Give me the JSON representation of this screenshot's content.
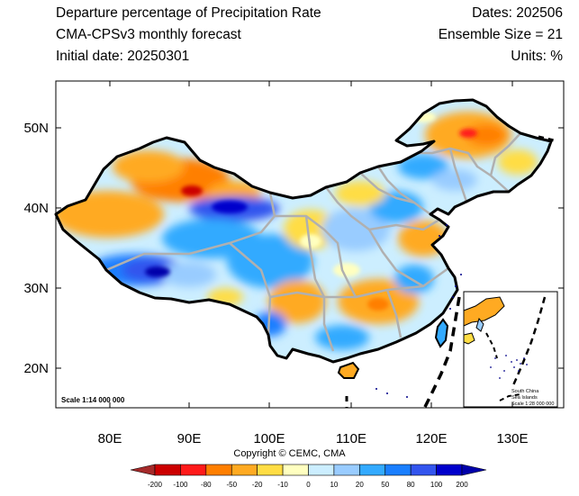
{
  "header": {
    "title": "Departure percentage of Precipitation Rate",
    "subtitle": "CMA-CPSv3 monthly forecast",
    "initial_date": "Initial date: 20250301",
    "dates": "Dates: 202506",
    "ensemble": "Ensemble Size = 21",
    "units": "Units: %"
  },
  "map": {
    "x_ticks": [
      "80E",
      "90E",
      "100E",
      "110E",
      "120E",
      "130E"
    ],
    "y_ticks": [
      "50N",
      "40N",
      "30N",
      "20N"
    ],
    "scale_main": "Scale 1:14 000 000",
    "inset": {
      "line1": "South China",
      "line2": "Sea Islands",
      "line3": "Scale 1:28 000 000"
    },
    "border_color": "#000000",
    "province_color": "#b0b0b0"
  },
  "copyright": "Copyright © CEMC, CMA",
  "colorbar": {
    "labels": [
      "-200",
      "-100",
      "-80",
      "-50",
      "-20",
      "-10",
      "0",
      "10",
      "20",
      "50",
      "80",
      "100",
      "200"
    ],
    "colors": [
      "#a52a2a",
      "#cc0000",
      "#ff1a1a",
      "#ff7f00",
      "#ffaa22",
      "#ffdd44",
      "#ffffc0",
      "#cceeff",
      "#99ccff",
      "#33aaff",
      "#1a7fff",
      "#3355ee",
      "#0000cc",
      "#0000aa"
    ]
  }
}
